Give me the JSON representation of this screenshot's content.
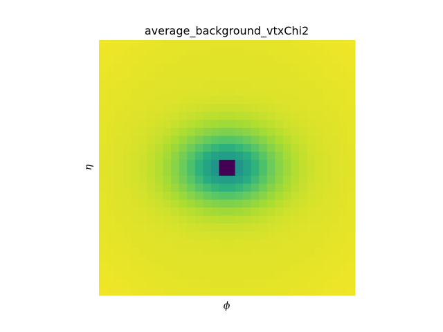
{
  "chart_data": {
    "type": "heatmap",
    "title": "average_background_vtxChi2",
    "xlabel": "ϕ",
    "ylabel": "η",
    "grid_size": [
      32,
      32
    ],
    "axis_ticks": false,
    "colorbar": false,
    "colormap": "viridis",
    "value_range": [
      0,
      1
    ],
    "center_cell": [
      15.5,
      15.5
    ],
    "profile": {
      "description": "normalized intensity rises from a deep minimum at the center to the maximum at the edges",
      "center_value": 0.0,
      "inner_ring_value": 0.45,
      "edge_value": 0.96,
      "x_scale": 5.5,
      "y_scale": 4.0,
      "falloff_power": 1.6
    }
  }
}
